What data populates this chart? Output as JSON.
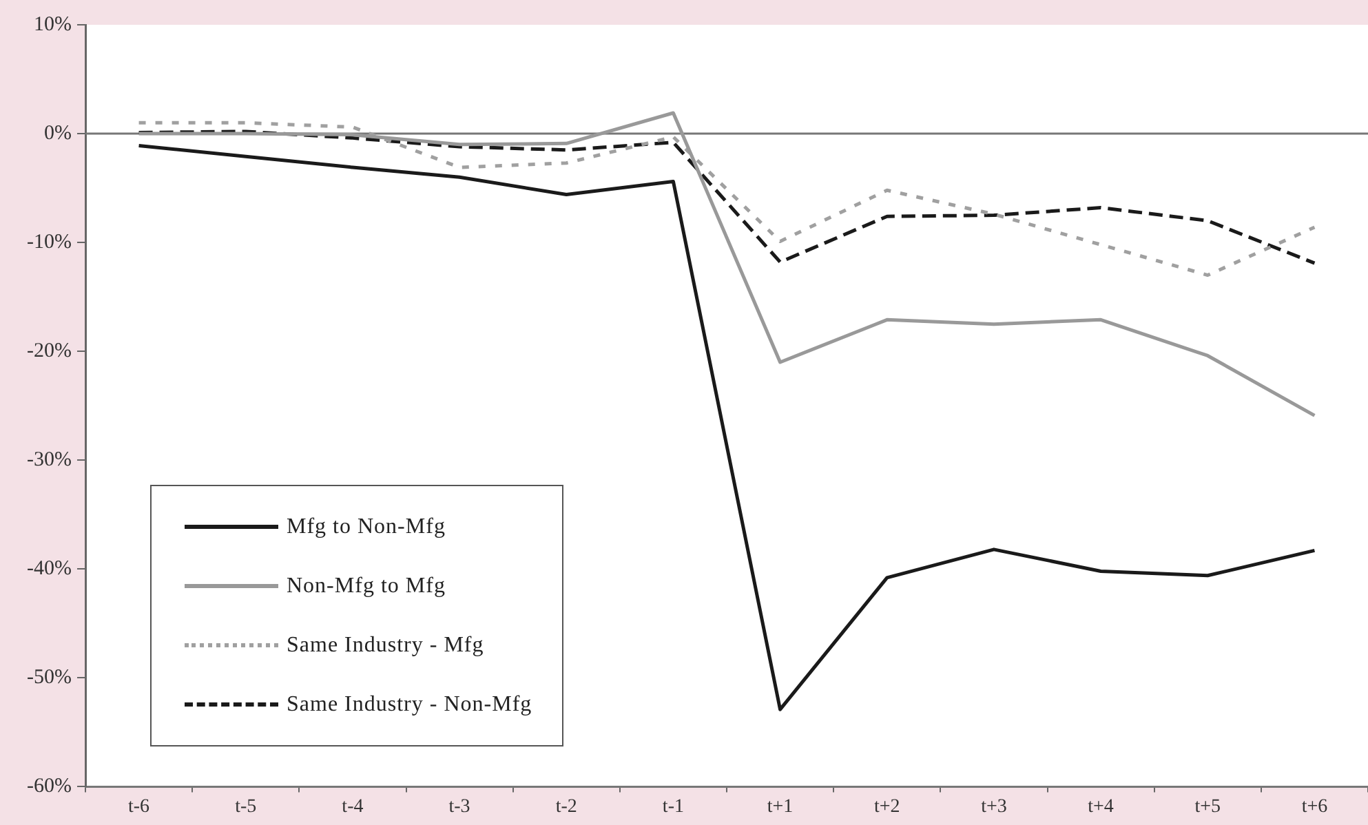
{
  "chart_data": {
    "type": "line",
    "categories": [
      "t-6",
      "t-5",
      "t-4",
      "t-3",
      "t-2",
      "t-1",
      "t+1",
      "t+2",
      "t+3",
      "t+4",
      "t+5",
      "t+6"
    ],
    "series": [
      {
        "name": "Mfg to Non-Mfg",
        "color": "#1a1a1a",
        "line_style": "solid",
        "values": [
          -1.1,
          -2.1,
          -3.1,
          -4.0,
          -5.6,
          -4.4,
          -52.9,
          -40.8,
          -38.2,
          -40.2,
          -40.6,
          -38.3
        ]
      },
      {
        "name": "Non-Mfg to Mfg",
        "color": "#999999",
        "line_style": "solid",
        "values": [
          0,
          0,
          -0.1,
          -1.0,
          -0.9,
          1.9,
          -21.0,
          -17.1,
          -17.5,
          -17.1,
          -20.4,
          -25.9
        ]
      },
      {
        "name": "Same Industry - Mfg",
        "color": "#a0a0a0",
        "line_style": "dotted",
        "values": [
          1.0,
          1.0,
          0.6,
          -3.1,
          -2.7,
          -0.3,
          -9.9,
          -5.2,
          -7.4,
          -10.2,
          -13.0,
          -8.6
        ]
      },
      {
        "name": "Same Industry - Non-Mfg",
        "color": "#1a1a1a",
        "line_style": "dashed",
        "values": [
          0.1,
          0.2,
          -0.4,
          -1.2,
          -1.5,
          -0.8,
          -11.8,
          -7.6,
          -7.5,
          -6.8,
          -8.0,
          -11.9
        ]
      }
    ],
    "ylim": [
      -60,
      10
    ],
    "yticks": [
      {
        "value": -60,
        "label": "-60%"
      },
      {
        "value": -50,
        "label": "-50%"
      },
      {
        "value": -40,
        "label": "-40%"
      },
      {
        "value": -30,
        "label": "-30%"
      },
      {
        "value": -20,
        "label": "-20%"
      },
      {
        "value": -10,
        "label": "-10%"
      },
      {
        "value": 0,
        "label": "0%"
      },
      {
        "value": 10,
        "label": "10%"
      }
    ],
    "ref_lines": [
      {
        "axis": "y",
        "value": 0,
        "color": "#777777"
      }
    ],
    "grid": false,
    "legend": "bottom left",
    "marker": "none"
  }
}
